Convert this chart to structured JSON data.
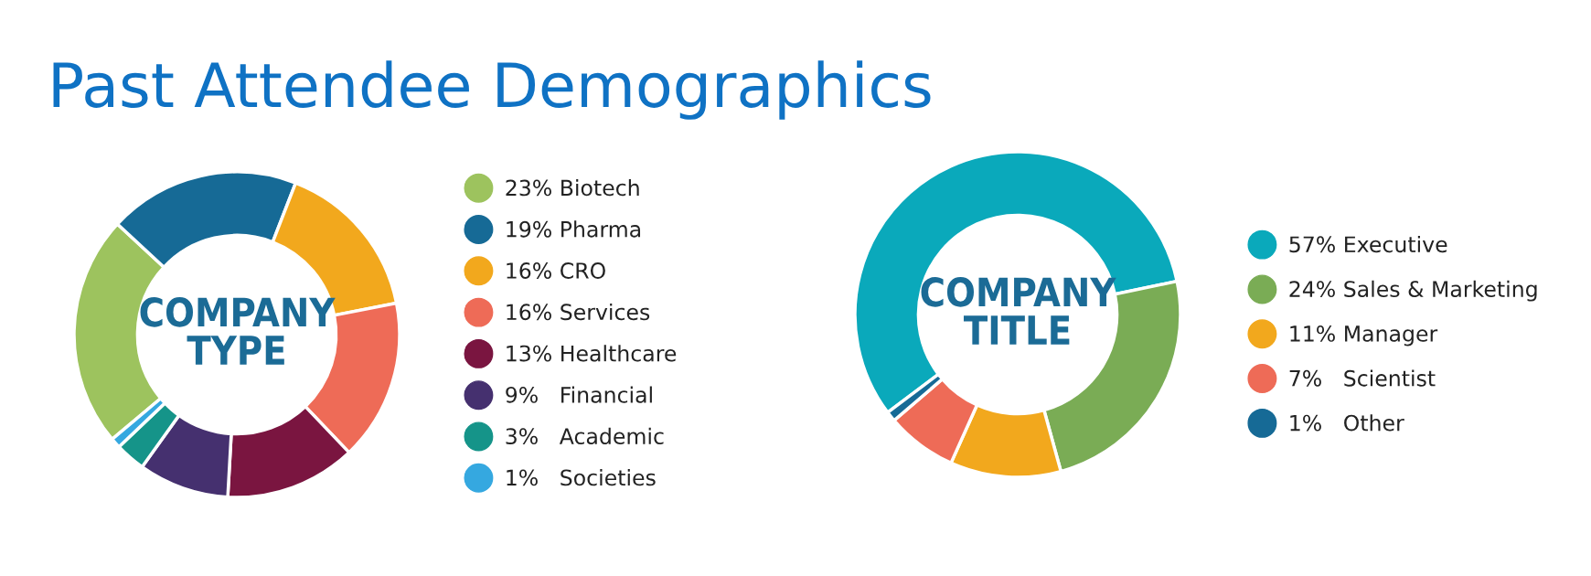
{
  "chart_data": [
    {
      "type": "donut",
      "title": "Past Attendee Demographics",
      "annotations": [
        "COMPANY\nTYPE"
      ],
      "legend": "right",
      "categories": [
        "23% Biotech",
        "19% Pharma",
        "16% CRO",
        "16% Services",
        "13% Healthcare",
        "9%   Financial",
        "3%   Academic",
        "1%   Societies"
      ],
      "values": [
        23,
        19,
        16,
        16,
        13,
        9,
        3,
        1
      ],
      "colors": [
        "#9dc35e",
        "#166a96",
        "#f2a81d",
        "#ee6b57",
        "#7a1540",
        "#45306f",
        "#159489",
        "#35a8e0"
      ]
    },
    {
      "type": "donut",
      "annotations": [
        "COMPANY\nTITLE"
      ],
      "legend": "right",
      "categories": [
        "57% Executive",
        "24% Sales & Marketing",
        "11% Manager",
        "7%   Scientist",
        "1%   Other"
      ],
      "values": [
        57,
        24,
        11,
        7,
        1
      ],
      "colors": [
        "#0aa9bb",
        "#7aac55",
        "#f2a81d",
        "#ee6b57",
        "#166a96"
      ]
    }
  ]
}
